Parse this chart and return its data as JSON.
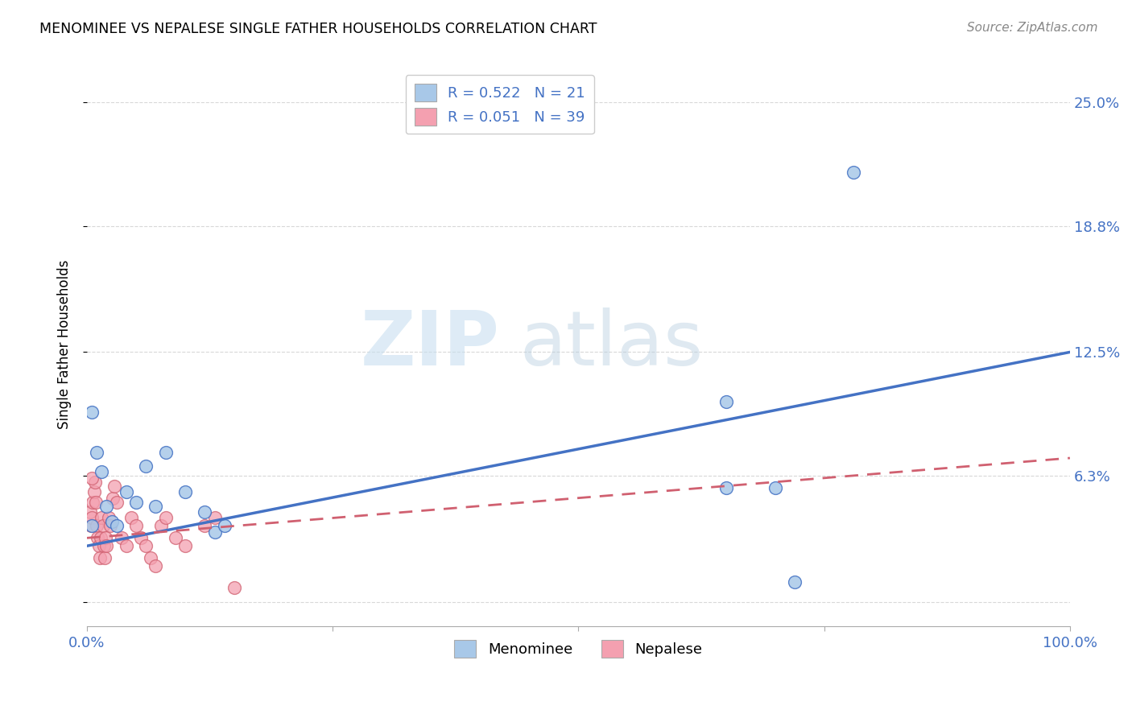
{
  "title": "MENOMINEE VS NEPALESE SINGLE FATHER HOUSEHOLDS CORRELATION CHART",
  "source": "Source: ZipAtlas.com",
  "ylabel": "Single Father Households",
  "xlim": [
    0.0,
    1.0
  ],
  "ylim": [
    -0.012,
    0.27
  ],
  "xticks": [
    0.0,
    0.25,
    0.5,
    0.75,
    1.0
  ],
  "xticklabels": [
    "0.0%",
    "",
    "",
    "",
    "100.0%"
  ],
  "ytick_positions": [
    0.0,
    0.063,
    0.125,
    0.188,
    0.25
  ],
  "yticklabels": [
    "",
    "6.3%",
    "12.5%",
    "18.8%",
    "25.0%"
  ],
  "menominee_R": "0.522",
  "menominee_N": "21",
  "nepalese_R": "0.051",
  "nepalese_N": "39",
  "menominee_color": "#a8c8e8",
  "nepalese_color": "#f4a0b0",
  "trend_menominee_color": "#4472c4",
  "trend_nepalese_color": "#d06070",
  "menominee_x": [
    0.005,
    0.01,
    0.015,
    0.02,
    0.025,
    0.03,
    0.04,
    0.05,
    0.06,
    0.07,
    0.08,
    0.1,
    0.12,
    0.13,
    0.14,
    0.65,
    0.7,
    0.78,
    0.005,
    0.65,
    0.72
  ],
  "menominee_y": [
    0.095,
    0.075,
    0.065,
    0.048,
    0.04,
    0.038,
    0.055,
    0.05,
    0.068,
    0.048,
    0.075,
    0.055,
    0.045,
    0.035,
    0.038,
    0.1,
    0.057,
    0.215,
    0.038,
    0.057,
    0.01
  ],
  "nepalese_x": [
    0.003,
    0.004,
    0.005,
    0.006,
    0.007,
    0.008,
    0.009,
    0.01,
    0.011,
    0.012,
    0.013,
    0.014,
    0.015,
    0.016,
    0.017,
    0.018,
    0.019,
    0.02,
    0.022,
    0.024,
    0.026,
    0.028,
    0.03,
    0.035,
    0.04,
    0.045,
    0.05,
    0.055,
    0.06,
    0.065,
    0.07,
    0.075,
    0.08,
    0.09,
    0.1,
    0.12,
    0.13,
    0.15,
    0.005
  ],
  "nepalese_y": [
    0.045,
    0.038,
    0.042,
    0.05,
    0.055,
    0.06,
    0.05,
    0.038,
    0.032,
    0.028,
    0.022,
    0.032,
    0.042,
    0.038,
    0.028,
    0.022,
    0.032,
    0.028,
    0.042,
    0.038,
    0.052,
    0.058,
    0.05,
    0.032,
    0.028,
    0.042,
    0.038,
    0.032,
    0.028,
    0.022,
    0.018,
    0.038,
    0.042,
    0.032,
    0.028,
    0.038,
    0.042,
    0.007,
    0.062
  ],
  "trend_menominee_x0": 0.0,
  "trend_menominee_y0": 0.028,
  "trend_menominee_x1": 1.0,
  "trend_menominee_y1": 0.125,
  "trend_nepalese_x0": 0.0,
  "trend_nepalese_y0": 0.032,
  "trend_nepalese_x1": 1.0,
  "trend_nepalese_y1": 0.072,
  "watermark_zip": "ZIP",
  "watermark_atlas": "atlas",
  "background_color": "#ffffff",
  "grid_color": "#d8d8d8",
  "legend_R_color": "#4472c4",
  "legend_N_color": "#4472c4",
  "tick_color": "#4472c4"
}
